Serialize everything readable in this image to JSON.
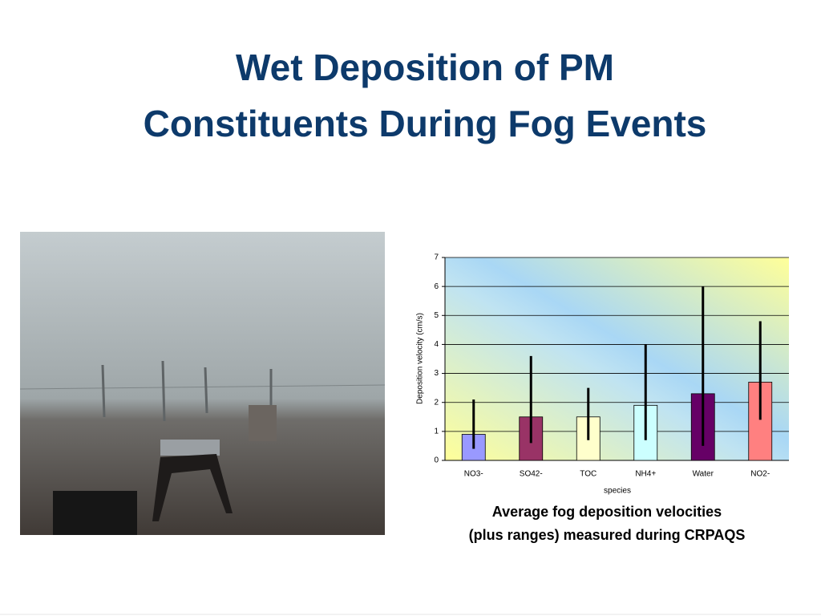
{
  "slide": {
    "title": [
      "Wet Deposition of PM",
      "Constituents During Fog Events"
    ]
  },
  "chart_data": {
    "type": "bar",
    "categories": [
      "NO3-",
      "SO42-",
      "TOC",
      "NH4+",
      "Water",
      "NO2-"
    ],
    "values": [
      0.9,
      1.5,
      1.5,
      1.9,
      2.3,
      2.7
    ],
    "low": [
      0.4,
      0.6,
      0.7,
      0.7,
      0.5,
      1.4
    ],
    "high": [
      2.1,
      3.6,
      2.5,
      4.0,
      6.0,
      4.8
    ],
    "colors": [
      "#9999ff",
      "#993366",
      "#ffffcc",
      "#ccffff",
      "#660066",
      "#ff8080"
    ],
    "ylim": [
      0,
      7
    ],
    "yticks": [
      0,
      1,
      2,
      3,
      4,
      5,
      6,
      7
    ],
    "grid": true,
    "x_label": "species",
    "y_label": "Deposition velocity (cm/s)",
    "caption": [
      "Average fog deposition velocities",
      "(plus ranges) measured during CRPAQS"
    ]
  }
}
